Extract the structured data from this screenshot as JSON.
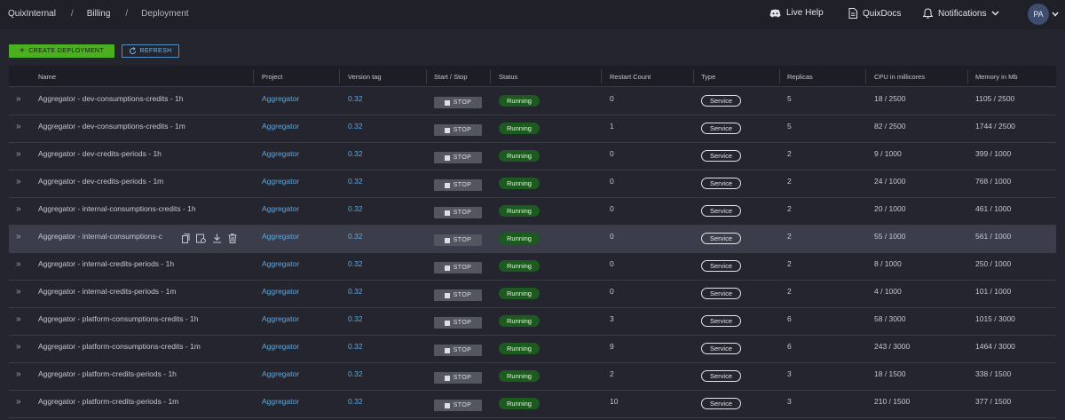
{
  "breadcrumb": [
    "QuixInternal",
    "Billing",
    "Deployment"
  ],
  "topnav": {
    "live_help": "Live Help",
    "docs": "QuixDocs",
    "notifications": "Notifications",
    "avatar": "PA"
  },
  "toolbar": {
    "create": "CREATE DEPLOYMENT",
    "refresh": "REFRESH"
  },
  "columns": [
    "Name",
    "Project",
    "Version tag",
    "Start / Stop",
    "Status",
    "Restart Count",
    "Type",
    "Replicas",
    "CPU in millicores",
    "Memory in Mb"
  ],
  "rows": [
    {
      "name": "Aggregator - dev-consumptions-credits - 1h",
      "project": "Aggregator",
      "version": "0.32",
      "action": "STOP",
      "status": "Running",
      "restarts": "0",
      "type": "Service",
      "replicas": "5",
      "cpu": "18 / 2500",
      "memory": "1105 / 2500"
    },
    {
      "name": "Aggregator - dev-consumptions-credits - 1m",
      "project": "Aggregator",
      "version": "0.32",
      "action": "STOP",
      "status": "Running",
      "restarts": "1",
      "type": "Service",
      "replicas": "5",
      "cpu": "82 / 2500",
      "memory": "1744 / 2500"
    },
    {
      "name": "Aggregator - dev-credits-periods - 1h",
      "project": "Aggregator",
      "version": "0.32",
      "action": "STOP",
      "status": "Running",
      "restarts": "0",
      "type": "Service",
      "replicas": "2",
      "cpu": "9 / 1000",
      "memory": "399 / 1000"
    },
    {
      "name": "Aggregator - dev-credits-periods - 1m",
      "project": "Aggregator",
      "version": "0.32",
      "action": "STOP",
      "status": "Running",
      "restarts": "0",
      "type": "Service",
      "replicas": "2",
      "cpu": "24 / 1000",
      "memory": "768 / 1000"
    },
    {
      "name": "Aggregator - internal-consumptions-credits - 1h",
      "project": "Aggregator",
      "version": "0.32",
      "action": "STOP",
      "status": "Running",
      "restarts": "0",
      "type": "Service",
      "replicas": "2",
      "cpu": "20 / 1000",
      "memory": "461 / 1000"
    },
    {
      "name": "Aggregator - internal-consumptions-c",
      "project": "Aggregator",
      "version": "0.32",
      "action": "STOP",
      "status": "Running",
      "restarts": "0",
      "type": "Service",
      "replicas": "2",
      "cpu": "55 / 1000",
      "memory": "561 / 1000",
      "highlighted": true
    },
    {
      "name": "Aggregator - internal-credits-periods - 1h",
      "project": "Aggregator",
      "version": "0.32",
      "action": "STOP",
      "status": "Running",
      "restarts": "0",
      "type": "Service",
      "replicas": "2",
      "cpu": "8 / 1000",
      "memory": "250 / 1000"
    },
    {
      "name": "Aggregator - internal-credits-periods - 1m",
      "project": "Aggregator",
      "version": "0.32",
      "action": "STOP",
      "status": "Running",
      "restarts": "0",
      "type": "Service",
      "replicas": "2",
      "cpu": "4 / 1000",
      "memory": "101 / 1000"
    },
    {
      "name": "Aggregator - platform-consumptions-credits - 1h",
      "project": "Aggregator",
      "version": "0.32",
      "action": "STOP",
      "status": "Running",
      "restarts": "3",
      "type": "Service",
      "replicas": "6",
      "cpu": "58 / 3000",
      "memory": "1015 / 3000"
    },
    {
      "name": "Aggregator - platform-consumptions-credits - 1m",
      "project": "Aggregator",
      "version": "0.32",
      "action": "STOP",
      "status": "Running",
      "restarts": "9",
      "type": "Service",
      "replicas": "6",
      "cpu": "243 / 3000",
      "memory": "1464 / 3000"
    },
    {
      "name": "Aggregator - platform-credits-periods - 1h",
      "project": "Aggregator",
      "version": "0.32",
      "action": "STOP",
      "status": "Running",
      "restarts": "2",
      "type": "Service",
      "replicas": "3",
      "cpu": "18 / 1500",
      "memory": "338 / 1500"
    },
    {
      "name": "Aggregator - platform-credits-periods - 1m",
      "project": "Aggregator",
      "version": "0.32",
      "action": "STOP",
      "status": "Running",
      "restarts": "10",
      "type": "Service",
      "replicas": "3",
      "cpu": "210 / 1500",
      "memory": "377 / 1500"
    }
  ],
  "colors": {
    "accent_green": "#4bb020",
    "link_blue": "#5ea8e0",
    "running_bg": "#1d5a1f",
    "background": "#24252e"
  },
  "icons": {
    "expand": "chevron-double-right-icon",
    "row_actions": [
      "copy-icon",
      "settings-icon",
      "download-icon",
      "delete-icon"
    ]
  }
}
